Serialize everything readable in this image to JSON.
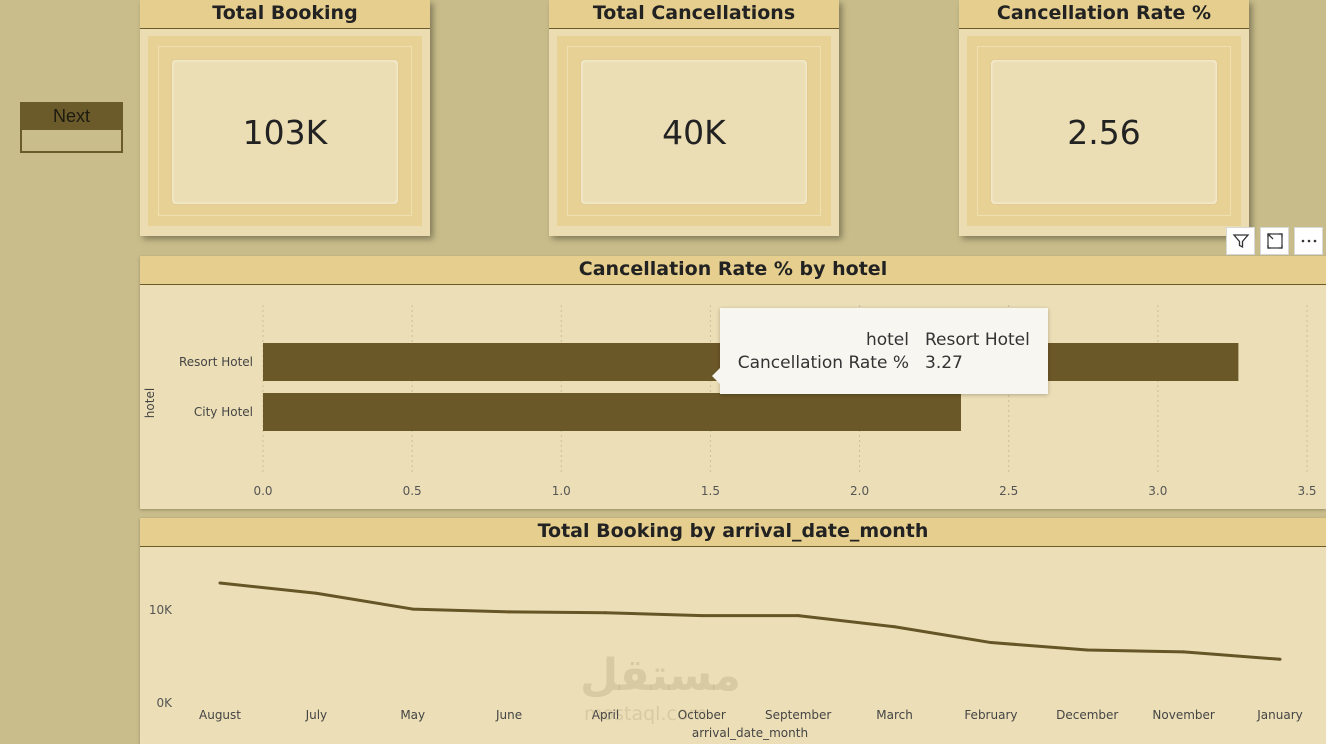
{
  "nav": {
    "next_label": "Next"
  },
  "kpis": [
    {
      "title": "Total Booking",
      "value": "103K"
    },
    {
      "title": "Total Cancellations",
      "value": "40K"
    },
    {
      "title": "Cancellation Rate %",
      "value": "2.56"
    }
  ],
  "visual_icons": [
    "filter-icon",
    "focus-mode-icon",
    "more-options-icon"
  ],
  "colors": {
    "bar": "#6b5828",
    "line": "#665526",
    "header": "#e6cf8e",
    "panel": "#ecdfb7",
    "background": "#c8bc8a"
  },
  "bar_chart": {
    "title": "Cancellation Rate % by hotel",
    "ylabel": "hotel",
    "xticks": [
      "0.0",
      "0.5",
      "1.0",
      "1.5",
      "2.0",
      "2.5",
      "3.0",
      "3.5"
    ]
  },
  "tooltip": {
    "rows": [
      {
        "key": "hotel",
        "value": "Resort Hotel"
      },
      {
        "key": "Cancellation Rate %",
        "value": "3.27"
      }
    ]
  },
  "line_chart": {
    "title": "Total Booking by arrival_date_month",
    "xlabel": "arrival_date_month",
    "yticks": [
      "0K",
      "10K"
    ]
  },
  "watermark": {
    "text": "مستقل",
    "sub": "mostaql.com"
  },
  "chart_data": [
    {
      "type": "bar",
      "orientation": "horizontal",
      "title": "Cancellation Rate % by hotel",
      "ylabel": "hotel",
      "xlabel": "",
      "categories": [
        "Resort Hotel",
        "City Hotel"
      ],
      "values": [
        3.27,
        2.34
      ],
      "xlim": [
        0,
        3.5
      ],
      "grid": true
    },
    {
      "type": "line",
      "title": "Total Booking by arrival_date_month",
      "xlabel": "arrival_date_month",
      "ylabel": "",
      "categories": [
        "August",
        "July",
        "May",
        "June",
        "April",
        "October",
        "September",
        "March",
        "February",
        "December",
        "November",
        "January"
      ],
      "values": [
        12900,
        11800,
        10100,
        9800,
        9700,
        9400,
        9400,
        8200,
        6500,
        5700,
        5500,
        4700
      ],
      "ylim": [
        0,
        13500
      ],
      "grid": false
    }
  ]
}
